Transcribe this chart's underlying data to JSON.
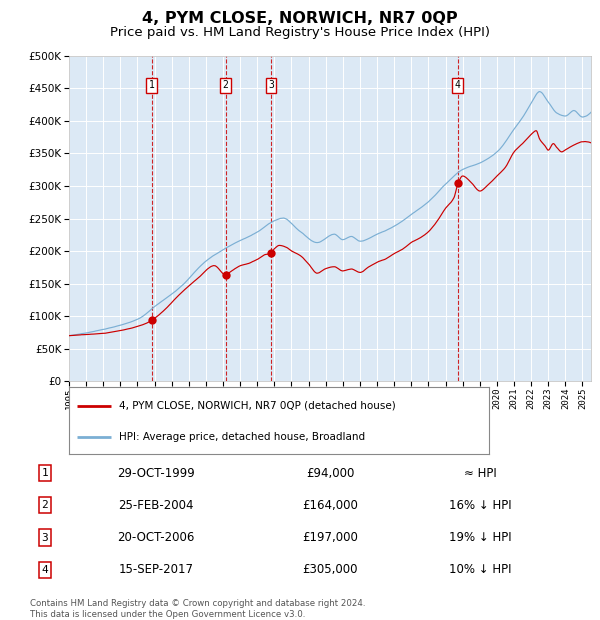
{
  "title": "4, PYM CLOSE, NORWICH, NR7 0QP",
  "subtitle": "Price paid vs. HM Land Registry's House Price Index (HPI)",
  "title_fontsize": 11.5,
  "subtitle_fontsize": 9.5,
  "ylim": [
    0,
    500000
  ],
  "yticks": [
    0,
    50000,
    100000,
    150000,
    200000,
    250000,
    300000,
    350000,
    400000,
    450000,
    500000
  ],
  "plot_bg_color": "#dce9f5",
  "grid_color": "#ffffff",
  "red_line_color": "#cc0000",
  "blue_line_color": "#7bafd4",
  "sale_markers": [
    {
      "label": "1",
      "date_x": 1999.83,
      "price": 94000
    },
    {
      "label": "2",
      "date_x": 2004.15,
      "price": 164000
    },
    {
      "label": "3",
      "date_x": 2006.8,
      "price": 197000
    },
    {
      "label": "4",
      "date_x": 2017.71,
      "price": 305000
    }
  ],
  "table_rows": [
    {
      "num": "1",
      "date": "29-OCT-1999",
      "price": "£94,000",
      "vs_hpi": "≈ HPI"
    },
    {
      "num": "2",
      "date": "25-FEB-2004",
      "price": "£164,000",
      "vs_hpi": "16% ↓ HPI"
    },
    {
      "num": "3",
      "date": "20-OCT-2006",
      "price": "£197,000",
      "vs_hpi": "19% ↓ HPI"
    },
    {
      "num": "4",
      "date": "15-SEP-2017",
      "price": "£305,000",
      "vs_hpi": "10% ↓ HPI"
    }
  ],
  "legend_line1": "4, PYM CLOSE, NORWICH, NR7 0QP (detached house)",
  "legend_line2": "HPI: Average price, detached house, Broadland",
  "footnote": "Contains HM Land Registry data © Crown copyright and database right 2024.\nThis data is licensed under the Open Government Licence v3.0.",
  "xmin": 1995.0,
  "xmax": 2025.5,
  "hpi_keypoints": [
    [
      1995.0,
      70000
    ],
    [
      1997.0,
      80000
    ],
    [
      1999.0,
      95000
    ],
    [
      2000.0,
      115000
    ],
    [
      2001.5,
      145000
    ],
    [
      2003.0,
      185000
    ],
    [
      2004.5,
      210000
    ],
    [
      2006.0,
      230000
    ],
    [
      2007.0,
      248000
    ],
    [
      2007.5,
      252000
    ],
    [
      2008.5,
      232000
    ],
    [
      2009.5,
      215000
    ],
    [
      2010.5,
      228000
    ],
    [
      2011.0,
      220000
    ],
    [
      2011.5,
      225000
    ],
    [
      2012.0,
      218000
    ],
    [
      2013.0,
      228000
    ],
    [
      2014.0,
      240000
    ],
    [
      2015.0,
      258000
    ],
    [
      2016.0,
      278000
    ],
    [
      2017.0,
      305000
    ],
    [
      2018.0,
      328000
    ],
    [
      2019.0,
      338000
    ],
    [
      2020.0,
      355000
    ],
    [
      2021.0,
      390000
    ],
    [
      2021.5,
      408000
    ],
    [
      2022.0,
      430000
    ],
    [
      2022.5,
      448000
    ],
    [
      2023.0,
      432000
    ],
    [
      2023.5,
      415000
    ],
    [
      2024.0,
      410000
    ],
    [
      2024.5,
      418000
    ],
    [
      2025.0,
      408000
    ],
    [
      2025.5,
      415000
    ]
  ],
  "red_keypoints": [
    [
      1995.0,
      70000
    ],
    [
      1996.0,
      72000
    ],
    [
      1997.0,
      74000
    ],
    [
      1998.0,
      78000
    ],
    [
      1999.0,
      84000
    ],
    [
      1999.83,
      94000
    ],
    [
      2000.5,
      108000
    ],
    [
      2001.5,
      135000
    ],
    [
      2002.5,
      158000
    ],
    [
      2003.5,
      178000
    ],
    [
      2004.15,
      164000
    ],
    [
      2004.5,
      170000
    ],
    [
      2005.0,
      178000
    ],
    [
      2005.5,
      182000
    ],
    [
      2006.0,
      188000
    ],
    [
      2006.5,
      196000
    ],
    [
      2006.8,
      197000
    ],
    [
      2007.0,
      205000
    ],
    [
      2007.3,
      210000
    ],
    [
      2007.7,
      207000
    ],
    [
      2008.0,
      202000
    ],
    [
      2008.5,
      195000
    ],
    [
      2009.0,
      182000
    ],
    [
      2009.5,
      168000
    ],
    [
      2010.0,
      175000
    ],
    [
      2010.5,
      178000
    ],
    [
      2011.0,
      172000
    ],
    [
      2011.5,
      175000
    ],
    [
      2012.0,
      170000
    ],
    [
      2012.5,
      178000
    ],
    [
      2013.0,
      185000
    ],
    [
      2013.5,
      190000
    ],
    [
      2014.0,
      198000
    ],
    [
      2014.5,
      205000
    ],
    [
      2015.0,
      215000
    ],
    [
      2015.5,
      222000
    ],
    [
      2016.0,
      232000
    ],
    [
      2016.5,
      248000
    ],
    [
      2017.0,
      268000
    ],
    [
      2017.5,
      285000
    ],
    [
      2017.71,
      305000
    ],
    [
      2018.0,
      318000
    ],
    [
      2018.5,
      308000
    ],
    [
      2019.0,
      295000
    ],
    [
      2019.5,
      305000
    ],
    [
      2020.0,
      318000
    ],
    [
      2020.5,
      332000
    ],
    [
      2021.0,
      355000
    ],
    [
      2021.5,
      368000
    ],
    [
      2022.0,
      382000
    ],
    [
      2022.3,
      388000
    ],
    [
      2022.5,
      375000
    ],
    [
      2022.8,
      365000
    ],
    [
      2023.0,
      358000
    ],
    [
      2023.3,
      368000
    ],
    [
      2023.5,
      362000
    ],
    [
      2023.8,
      355000
    ],
    [
      2024.0,
      358000
    ],
    [
      2024.5,
      365000
    ],
    [
      2025.0,
      370000
    ],
    [
      2025.5,
      368000
    ]
  ]
}
